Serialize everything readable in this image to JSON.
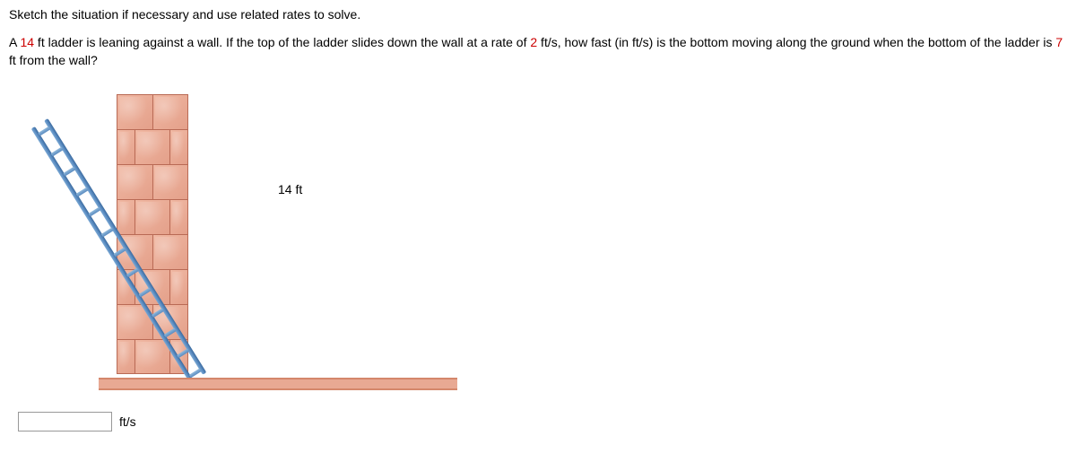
{
  "instruction": "Sketch the situation if necessary and use related rates to solve.",
  "problem": {
    "prefix": "A ",
    "val1": "14",
    "seg1": " ft ladder is leaning against a wall. If the top of the ladder slides down the wall at a rate of ",
    "val2": "2",
    "seg2": " ft/s, how fast (in ft/s) is the bottom moving along the ground when the bottom of the ladder is ",
    "val3": "7",
    "seg3": " ft from the wall?"
  },
  "figure": {
    "ladder_label": "14 ft",
    "wall_rows": 8,
    "rung_count": 13,
    "colors": {
      "brick_fill": "#e8a993",
      "brick_border": "#b96a55",
      "ladder_rail": "#5a8bc0",
      "ground": "#e8a993"
    }
  },
  "answer": {
    "value": "",
    "unit": "ft/s"
  }
}
